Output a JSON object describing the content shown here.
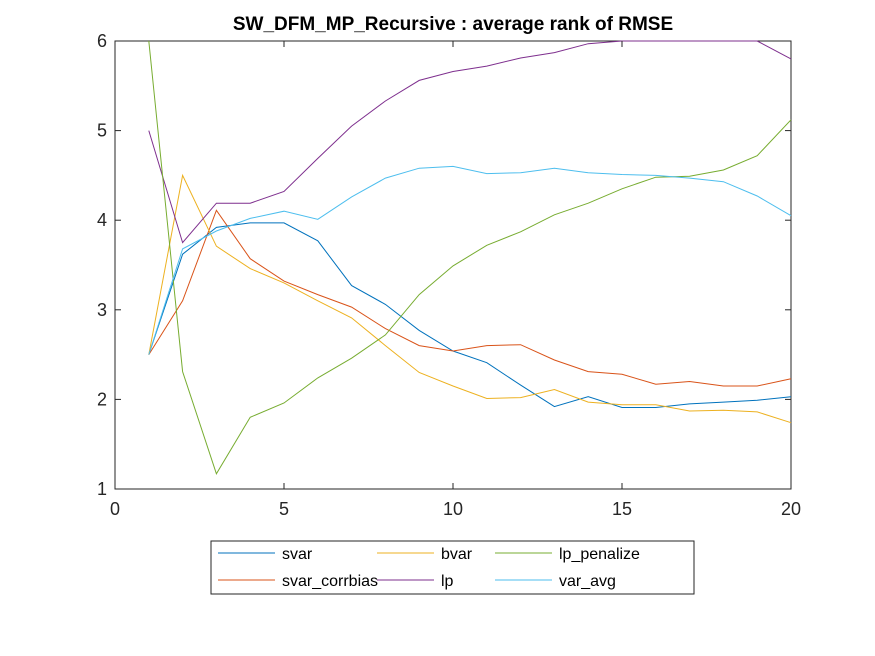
{
  "chart_data": {
    "type": "line",
    "title": "SW_DFM_MP_Recursive : average rank of RMSE",
    "xlabel": "",
    "ylabel": "",
    "xlim": [
      0,
      20
    ],
    "ylim": [
      1,
      6
    ],
    "xticks": [
      0,
      5,
      10,
      15,
      20
    ],
    "yticks": [
      1,
      2,
      3,
      4,
      5,
      6
    ],
    "grid": false,
    "legend_position": "bottom-outside",
    "legend_columns": 3,
    "x": [
      1,
      2,
      3,
      4,
      5,
      6,
      7,
      8,
      9,
      10,
      11,
      12,
      13,
      14,
      15,
      16,
      17,
      18,
      19,
      20
    ],
    "series": [
      {
        "name": "svar",
        "color": "#0072BD",
        "values": [
          2.5,
          3.62,
          3.92,
          3.97,
          3.97,
          3.77,
          3.27,
          3.06,
          2.77,
          2.54,
          2.41,
          2.16,
          1.92,
          2.03,
          1.91,
          1.91,
          1.95,
          1.97,
          1.99,
          2.03
        ]
      },
      {
        "name": "svar_corrbias",
        "color": "#D95319",
        "values": [
          2.5,
          3.1,
          4.11,
          3.57,
          3.32,
          3.17,
          3.03,
          2.79,
          2.6,
          2.54,
          2.6,
          2.61,
          2.44,
          2.31,
          2.28,
          2.17,
          2.2,
          2.15,
          2.15,
          2.23
        ]
      },
      {
        "name": "bvar",
        "color": "#EDB120",
        "values": [
          2.5,
          4.5,
          3.71,
          3.46,
          3.3,
          3.1,
          2.91,
          2.6,
          2.3,
          2.15,
          2.01,
          2.02,
          2.11,
          1.97,
          1.94,
          1.94,
          1.87,
          1.88,
          1.86,
          1.74
        ]
      },
      {
        "name": "lp",
        "color": "#7E2F8E",
        "values": [
          5.0,
          3.75,
          4.19,
          4.19,
          4.32,
          4.69,
          5.05,
          5.33,
          5.56,
          5.66,
          5.72,
          5.81,
          5.87,
          5.97,
          6.0,
          6.0,
          6.0,
          6.0,
          6.0,
          5.8
        ]
      },
      {
        "name": "lp_penalize",
        "color": "#77AC30",
        "values": [
          6.0,
          2.31,
          1.17,
          1.8,
          1.96,
          2.24,
          2.46,
          2.72,
          3.17,
          3.49,
          3.72,
          3.87,
          4.06,
          4.19,
          4.35,
          4.48,
          4.49,
          4.56,
          4.72,
          5.12
        ]
      },
      {
        "name": "var_avg",
        "color": "#4DBEEE",
        "values": [
          2.5,
          3.68,
          3.88,
          4.02,
          4.1,
          4.01,
          4.26,
          4.47,
          4.58,
          4.6,
          4.52,
          4.53,
          4.58,
          4.53,
          4.51,
          4.5,
          4.47,
          4.43,
          4.27,
          4.05
        ]
      }
    ],
    "legend_order": [
      "svar",
      "bvar",
      "lp_penalize",
      "svar_corrbias",
      "lp",
      "var_avg"
    ]
  }
}
